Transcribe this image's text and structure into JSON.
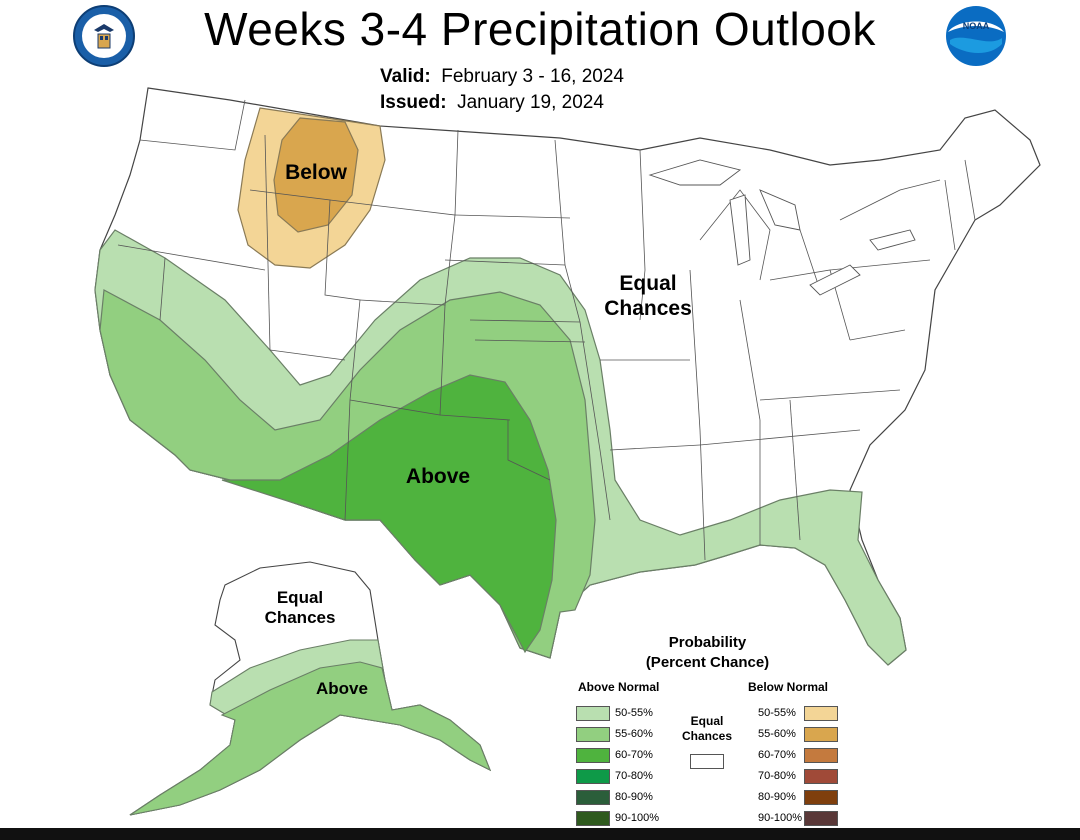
{
  "header": {
    "title": "Weeks 3-4 Precipitation Outlook",
    "valid_label": "Valid:",
    "valid_value": "February 3 - 16, 2024",
    "issued_label": "Issued:",
    "issued_value": "January 19, 2024",
    "left_logo": "department-of-commerce-seal",
    "right_logo": "noaa-logo",
    "noaa_text": "NOAA"
  },
  "map": {
    "labels": {
      "below": "Below",
      "equal_chances_line1": "Equal",
      "equal_chances_line2": "Chances",
      "above": "Above",
      "ak_equal_line1": "Equal",
      "ak_equal_line2": "Chances",
      "ak_above": "Above"
    },
    "colors": {
      "above_50_55": "#b9dfb0",
      "above_55_60": "#92cf80",
      "above_60_70": "#4fb33e",
      "below_50_55": "#f3d596",
      "below_55_60": "#d9a64e",
      "equal": "#ffffff"
    }
  },
  "legend": {
    "title_line1": "Probability",
    "title_line2": "(Percent Chance)",
    "above_header": "Above Normal",
    "below_header": "Below Normal",
    "equal_line1": "Equal",
    "equal_line2": "Chances",
    "above": [
      {
        "label": "50-55%",
        "color": "#b9dfb0"
      },
      {
        "label": "55-60%",
        "color": "#92cf80"
      },
      {
        "label": "60-70%",
        "color": "#4fb33e"
      },
      {
        "label": "70-80%",
        "color": "#0e9a48"
      },
      {
        "label": "80-90%",
        "color": "#2b5e3a"
      },
      {
        "label": "90-100%",
        "color": "#2f5a1e"
      }
    ],
    "below": [
      {
        "label": "50-55%",
        "color": "#f3d596"
      },
      {
        "label": "55-60%",
        "color": "#d9a64e"
      },
      {
        "label": "60-70%",
        "color": "#c47a3e"
      },
      {
        "label": "70-80%",
        "color": "#a04a38"
      },
      {
        "label": "80-90%",
        "color": "#7f3f0d"
      },
      {
        "label": "90-100%",
        "color": "#5a3838"
      }
    ]
  }
}
